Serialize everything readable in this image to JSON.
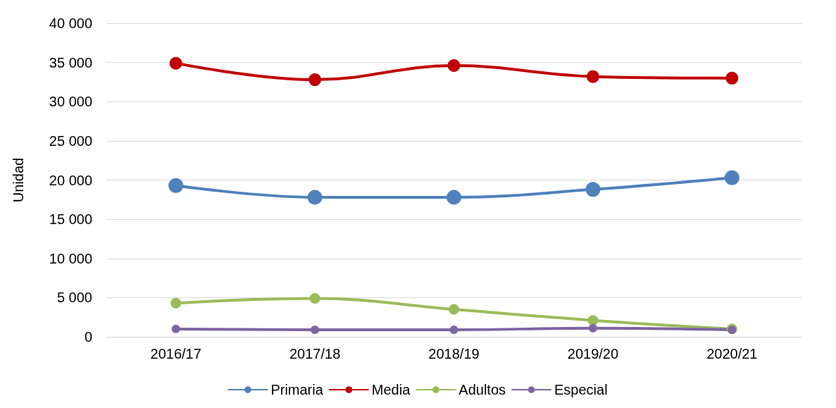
{
  "chart_data": {
    "type": "line",
    "ylabel": "Unidad",
    "categories": [
      "2016/17",
      "2017/18",
      "2018/19",
      "2019/20",
      "2020/21"
    ],
    "series": [
      {
        "name": "Primaria",
        "color": "#4f81bd",
        "values": [
          19300,
          17800,
          17800,
          18800,
          20300
        ]
      },
      {
        "name": "Media",
        "color": "#c00000",
        "values": [
          34900,
          32800,
          34600,
          33200,
          33000
        ]
      },
      {
        "name": "Adultos",
        "color": "#9bbb59",
        "values": [
          4300,
          4900,
          3500,
          2100,
          1000
        ]
      },
      {
        "name": "Especial",
        "color": "#8064a2",
        "values": [
          1000,
          900,
          900,
          1100,
          900
        ]
      }
    ],
    "ylim": [
      0,
      40000
    ],
    "yticks": [
      {
        "value": 0,
        "label": "0"
      },
      {
        "value": 5000,
        "label": "5 000"
      },
      {
        "value": 10000,
        "label": "10 000"
      },
      {
        "value": 15000,
        "label": "15 000"
      },
      {
        "value": 20000,
        "label": "20 000"
      },
      {
        "value": 25000,
        "label": "25 000"
      },
      {
        "value": 30000,
        "label": "30 000"
      },
      {
        "value": 35000,
        "label": "35 000"
      },
      {
        "value": 40000,
        "label": "40 000"
      }
    ],
    "grid": "y",
    "legend": "bottom",
    "marker": "circle",
    "line_style": "solid"
  }
}
